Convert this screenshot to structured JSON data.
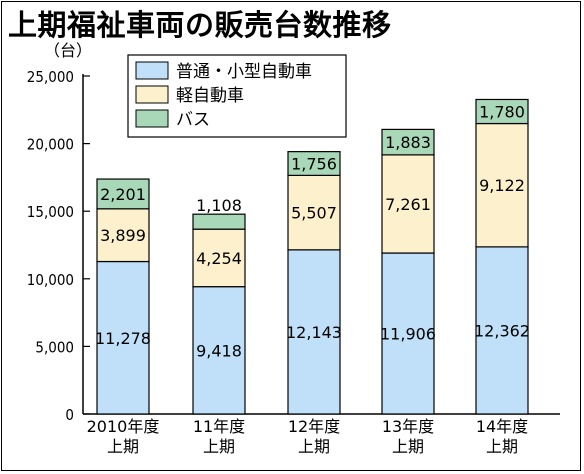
{
  "chart_data": {
    "type": "bar",
    "stacked": true,
    "title": "上期福祉車両の販売台数推移",
    "unit_label": "（台）",
    "categories": [
      "2010年度\n上期",
      "11年度\n上期",
      "12年度\n上期",
      "13年度\n上期",
      "14年度\n上期"
    ],
    "series": [
      {
        "name": "普通・小型自動車",
        "values": [
          11278,
          9418,
          12143,
          11906,
          12362
        ],
        "labels": [
          "11,278",
          "9,418",
          "12,143",
          "11,906",
          "12,362"
        ],
        "color": "#bfe0f8"
      },
      {
        "name": "軽自動車",
        "values": [
          3899,
          4254,
          5507,
          7261,
          9122
        ],
        "labels": [
          "3,899",
          "4,254",
          "5,507",
          "7,261",
          "9,122"
        ],
        "color": "#fdf0cc"
      },
      {
        "name": "バス",
        "values": [
          2201,
          1108,
          1756,
          1883,
          1780
        ],
        "labels": [
          "2,201",
          "1,108",
          "1,756",
          "1,883",
          "1,780"
        ],
        "color": "#a8d8b8"
      }
    ],
    "ylim": [
      0,
      25000
    ],
    "yticks": [
      0,
      5000,
      10000,
      15000,
      20000,
      25000
    ],
    "ytick_labels": [
      "0",
      "5,000",
      "10,000",
      "15,000",
      "20,000",
      "25,000"
    ],
    "legend_position": "top-left",
    "grid": false
  }
}
